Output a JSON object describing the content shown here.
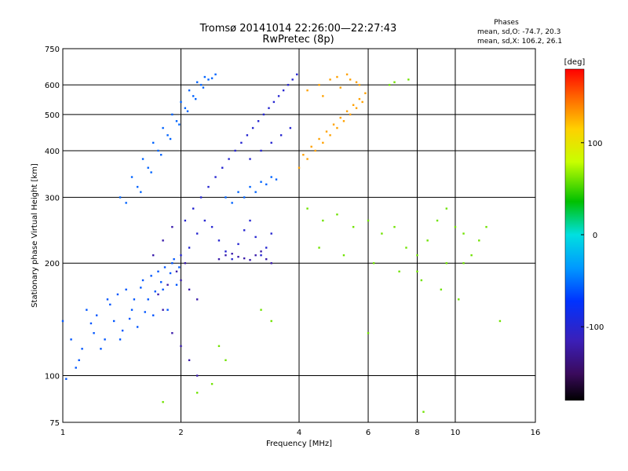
{
  "chart_data": {
    "type": "scatter",
    "title": "Tromsø 20141014 22:26:00—22:27:43",
    "subtitle": "RwPretec (8p)",
    "stats_title": "Phases",
    "stats_lines": [
      "mean, sd,O: -74.7, 20.3",
      "mean, sd,X: 106.2, 26.1"
    ],
    "xlabel": "Frequency [MHz]",
    "ylabel": "Stationary phase Virtual Height [km]",
    "x_scale": "log",
    "y_scale": "log",
    "xlim": [
      1,
      16
    ],
    "ylim": [
      75,
      750
    ],
    "x_ticks": [
      1,
      2,
      4,
      6,
      8,
      10,
      16
    ],
    "y_ticks": [
      75,
      100,
      200,
      300,
      400,
      500,
      600,
      750
    ],
    "grid": true,
    "colorbar": {
      "label": "[deg]",
      "range": [
        -180,
        180
      ],
      "ticks": [
        100,
        0,
        -100
      ]
    },
    "clusters": [
      {
        "name": "cyan-low-1",
        "points": [
          [
            1.0,
            140
          ],
          [
            1.05,
            125
          ],
          [
            1.1,
            110
          ],
          [
            1.15,
            150
          ],
          [
            1.2,
            130
          ],
          [
            1.25,
            118
          ],
          [
            1.3,
            160
          ],
          [
            1.35,
            140
          ],
          [
            1.4,
            125
          ],
          [
            1.45,
            170
          ],
          [
            1.5,
            150
          ],
          [
            1.55,
            135
          ],
          [
            1.6,
            180
          ],
          [
            1.65,
            160
          ],
          [
            1.7,
            145
          ],
          [
            1.75,
            190
          ],
          [
            1.8,
            170
          ],
          [
            1.85,
            150
          ],
          [
            1.9,
            200
          ],
          [
            1.95,
            175
          ],
          [
            1.02,
            98
          ],
          [
            1.08,
            105
          ],
          [
            1.12,
            118
          ],
          [
            1.18,
            138
          ],
          [
            1.22,
            145
          ],
          [
            1.28,
            125
          ],
          [
            1.32,
            155
          ],
          [
            1.38,
            165
          ],
          [
            1.42,
            132
          ],
          [
            1.48,
            142
          ],
          [
            1.52,
            160
          ],
          [
            1.58,
            172
          ],
          [
            1.62,
            148
          ],
          [
            1.68,
            185
          ],
          [
            1.72,
            168
          ],
          [
            1.78,
            178
          ],
          [
            1.82,
            195
          ],
          [
            1.88,
            188
          ],
          [
            1.92,
            205
          ],
          [
            1.98,
            195
          ]
        ],
        "phase": -60
      },
      {
        "name": "cyan-upper",
        "points": [
          [
            1.4,
            300
          ],
          [
            1.5,
            340
          ],
          [
            1.6,
            380
          ],
          [
            1.7,
            420
          ],
          [
            1.8,
            460
          ],
          [
            1.9,
            500
          ],
          [
            2.0,
            540
          ],
          [
            2.1,
            580
          ],
          [
            2.2,
            610
          ],
          [
            2.3,
            630
          ],
          [
            1.55,
            320
          ],
          [
            1.65,
            360
          ],
          [
            1.75,
            400
          ],
          [
            1.85,
            440
          ],
          [
            1.95,
            480
          ],
          [
            2.05,
            520
          ],
          [
            2.15,
            560
          ],
          [
            2.25,
            600
          ],
          [
            2.35,
            620
          ],
          [
            2.45,
            640
          ],
          [
            1.45,
            290
          ],
          [
            1.58,
            310
          ],
          [
            1.68,
            350
          ],
          [
            1.78,
            390
          ],
          [
            1.88,
            430
          ],
          [
            1.98,
            470
          ],
          [
            2.08,
            510
          ],
          [
            2.18,
            550
          ],
          [
            2.28,
            590
          ],
          [
            2.4,
            625
          ],
          [
            2.6,
            300
          ],
          [
            2.8,
            310
          ],
          [
            3.0,
            320
          ],
          [
            3.2,
            330
          ],
          [
            3.4,
            340
          ],
          [
            2.7,
            290
          ],
          [
            2.9,
            300
          ],
          [
            3.1,
            310
          ],
          [
            3.3,
            325
          ],
          [
            3.5,
            335
          ]
        ],
        "phase": -55
      },
      {
        "name": "blue-main",
        "points": [
          [
            2.0,
            210
          ],
          [
            2.1,
            220
          ],
          [
            2.2,
            240
          ],
          [
            2.3,
            260
          ],
          [
            2.4,
            250
          ],
          [
            2.5,
            230
          ],
          [
            2.6,
            215
          ],
          [
            2.7,
            205
          ],
          [
            2.8,
            225
          ],
          [
            2.9,
            245
          ],
          [
            3.0,
            260
          ],
          [
            3.1,
            235
          ],
          [
            3.2,
            210
          ],
          [
            3.3,
            220
          ],
          [
            3.4,
            240
          ],
          [
            2.05,
            260
          ],
          [
            2.15,
            280
          ],
          [
            2.25,
            300
          ],
          [
            2.35,
            320
          ],
          [
            2.45,
            340
          ],
          [
            2.55,
            360
          ],
          [
            2.65,
            380
          ],
          [
            2.75,
            400
          ],
          [
            2.85,
            420
          ],
          [
            2.95,
            440
          ],
          [
            3.05,
            460
          ],
          [
            3.15,
            480
          ],
          [
            3.25,
            500
          ],
          [
            3.35,
            520
          ],
          [
            3.45,
            540
          ],
          [
            3.55,
            560
          ],
          [
            3.65,
            580
          ],
          [
            3.75,
            600
          ],
          [
            3.85,
            620
          ],
          [
            3.95,
            640
          ],
          [
            3.0,
            380
          ],
          [
            3.2,
            400
          ],
          [
            3.4,
            420
          ],
          [
            3.6,
            440
          ],
          [
            3.8,
            460
          ]
        ],
        "phase": -100
      },
      {
        "name": "blue-dark",
        "points": [
          [
            1.7,
            210
          ],
          [
            1.8,
            230
          ],
          [
            1.9,
            250
          ],
          [
            2.0,
            180
          ],
          [
            2.1,
            170
          ],
          [
            2.2,
            160
          ],
          [
            1.9,
            130
          ],
          [
            2.0,
            120
          ],
          [
            2.1,
            110
          ],
          [
            2.2,
            100
          ],
          [
            1.8,
            150
          ],
          [
            1.75,
            165
          ],
          [
            1.85,
            175
          ],
          [
            1.95,
            190
          ],
          [
            2.05,
            200
          ],
          [
            2.5,
            205
          ],
          [
            2.6,
            210
          ],
          [
            2.7,
            212
          ],
          [
            2.8,
            208
          ],
          [
            2.9,
            206
          ],
          [
            3.0,
            204
          ],
          [
            3.1,
            210
          ],
          [
            3.2,
            215
          ],
          [
            3.3,
            205
          ],
          [
            3.4,
            200
          ]
        ],
        "phase": -120
      },
      {
        "name": "orange-upper",
        "points": [
          [
            4.0,
            360
          ],
          [
            4.2,
            380
          ],
          [
            4.4,
            400
          ],
          [
            4.6,
            420
          ],
          [
            4.8,
            440
          ],
          [
            5.0,
            460
          ],
          [
            5.2,
            480
          ],
          [
            5.4,
            500
          ],
          [
            5.6,
            520
          ],
          [
            5.8,
            540
          ],
          [
            4.1,
            390
          ],
          [
            4.3,
            410
          ],
          [
            4.5,
            430
          ],
          [
            4.7,
            450
          ],
          [
            4.9,
            470
          ],
          [
            5.1,
            490
          ],
          [
            5.3,
            510
          ],
          [
            5.5,
            530
          ],
          [
            5.7,
            550
          ],
          [
            5.9,
            570
          ],
          [
            4.5,
            600
          ],
          [
            4.8,
            620
          ],
          [
            5.0,
            630
          ],
          [
            5.3,
            640
          ],
          [
            5.6,
            610
          ],
          [
            4.2,
            580
          ],
          [
            4.6,
            560
          ],
          [
            5.1,
            590
          ],
          [
            5.4,
            620
          ],
          [
            5.7,
            600
          ]
        ],
        "phase": 130
      },
      {
        "name": "mixed-scatter",
        "points": [
          [
            4.2,
            280
          ],
          [
            4.6,
            260
          ],
          [
            5.0,
            270
          ],
          [
            5.5,
            250
          ],
          [
            6.0,
            260
          ],
          [
            6.5,
            240
          ],
          [
            7.0,
            250
          ],
          [
            7.5,
            220
          ],
          [
            8.0,
            210
          ],
          [
            8.5,
            230
          ],
          [
            9.0,
            260
          ],
          [
            9.5,
            280
          ],
          [
            10,
            250
          ],
          [
            10.5,
            240
          ],
          [
            11,
            210
          ],
          [
            11.5,
            230
          ],
          [
            12,
            250
          ],
          [
            4.5,
            220
          ],
          [
            5.2,
            210
          ],
          [
            6.2,
            200
          ],
          [
            7.2,
            190
          ],
          [
            8.2,
            180
          ],
          [
            9.2,
            170
          ],
          [
            10.2,
            160
          ],
          [
            3.2,
            150
          ],
          [
            3.4,
            140
          ],
          [
            2.5,
            120
          ],
          [
            2.6,
            110
          ],
          [
            2.4,
            95
          ],
          [
            1.8,
            85
          ],
          [
            2.2,
            90
          ],
          [
            6.8,
            600
          ],
          [
            7.0,
            610
          ],
          [
            7.6,
            620
          ],
          [
            8.0,
            190
          ],
          [
            9.5,
            200
          ],
          [
            10.5,
            200
          ],
          [
            13,
            140
          ],
          [
            8.3,
            80
          ],
          [
            6,
            130
          ]
        ],
        "phase": 60
      }
    ]
  }
}
